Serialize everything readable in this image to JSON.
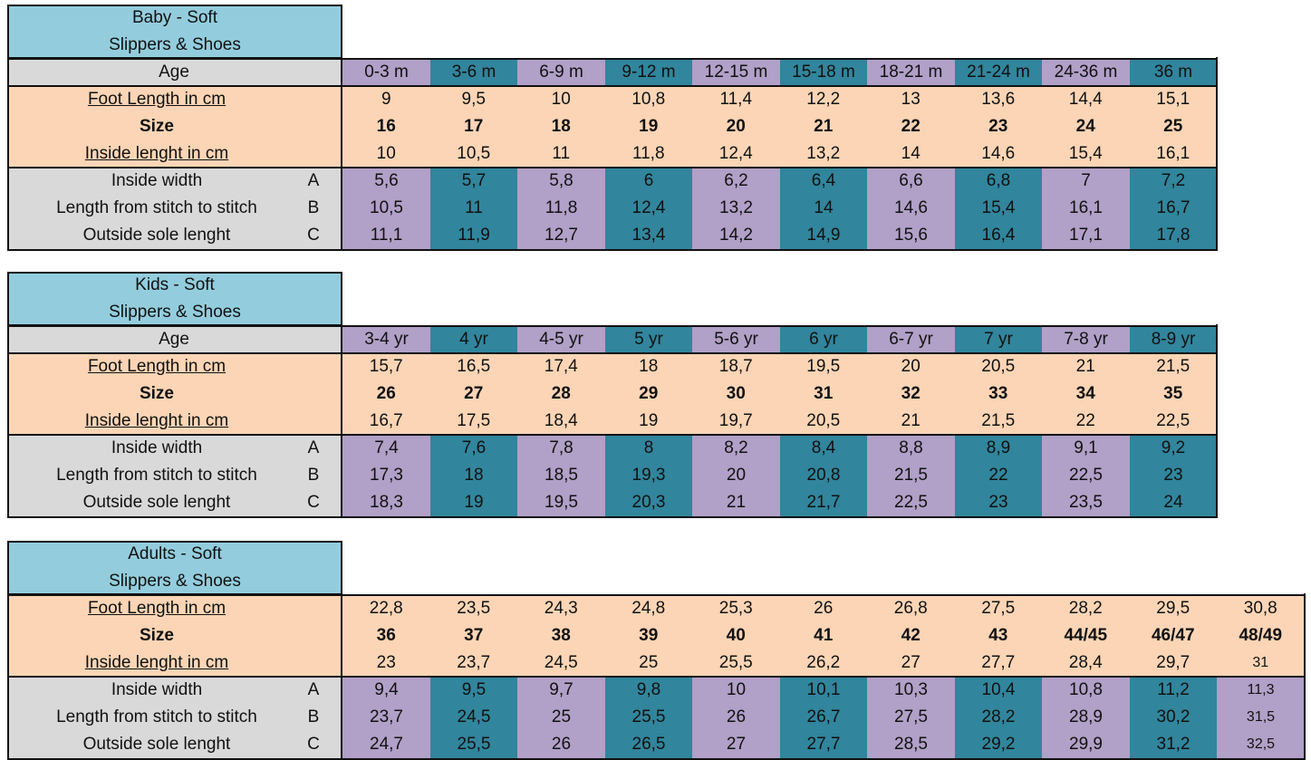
{
  "tables": [
    {
      "title_line1": "Baby - Soft",
      "title_line2": "Slippers & Shoes",
      "age_label": "Age",
      "ages": [
        "0-3 m",
        "3-6 m",
        "6-9 m",
        "9-12 m",
        "12-15 m",
        "15-18 m",
        "18-21 m",
        "21-24 m",
        "24-36 m",
        "36 m"
      ],
      "foot_length_label": "Foot Length in cm",
      "foot_length": [
        "9",
        "9,5",
        "10",
        "10,8",
        "11,4",
        "12,2",
        "13",
        "13,6",
        "14,4",
        "15,1"
      ],
      "size_label": "Size",
      "size": [
        "16",
        "17",
        "18",
        "19",
        "20",
        "21",
        "22",
        "23",
        "24",
        "25"
      ],
      "inside_length_label": "Inside lenght in cm",
      "inside_length": [
        "10",
        "10,5",
        "11",
        "11,8",
        "12,4",
        "13,2",
        "14",
        "14,6",
        "15,4",
        "16,1"
      ],
      "inside_width_label": "Inside width",
      "inside_width_letter": "A",
      "inside_width": [
        "5,6",
        "5,7",
        "5,8",
        "6",
        "6,2",
        "6,4",
        "6,6",
        "6,8",
        "7",
        "7,2"
      ],
      "stitch_label": "Length from stitch to stitch",
      "stitch_letter": "B",
      "stitch": [
        "10,5",
        "11",
        "11,8",
        "12,4",
        "13,2",
        "14",
        "14,6",
        "15,4",
        "16,1",
        "16,7"
      ],
      "outside_label": "Outside sole lenght",
      "outside_letter": "C",
      "outside": [
        "11,1",
        "11,9",
        "12,7",
        "13,4",
        "14,2",
        "14,9",
        "15,6",
        "16,4",
        "17,1",
        "17,8"
      ]
    },
    {
      "title_line1": "Kids - Soft",
      "title_line2": "Slippers & Shoes",
      "age_label": "Age",
      "ages": [
        "3-4 yr",
        "4 yr",
        "4-5 yr",
        "5 yr",
        "5-6 yr",
        "6 yr",
        "6-7 yr",
        "7 yr",
        "7-8 yr",
        "8-9 yr"
      ],
      "foot_length_label": "Foot Length in cm",
      "foot_length": [
        "15,7",
        "16,5",
        "17,4",
        "18",
        "18,7",
        "19,5",
        "20",
        "20,5",
        "21",
        "21,5"
      ],
      "size_label": "Size",
      "size": [
        "26",
        "27",
        "28",
        "29",
        "30",
        "31",
        "32",
        "33",
        "34",
        "35"
      ],
      "inside_length_label": "Inside lenght in cm",
      "inside_length": [
        "16,7",
        "17,5",
        "18,4",
        "19",
        "19,7",
        "20,5",
        "21",
        "21,5",
        "22",
        "22,5"
      ],
      "inside_width_label": "Inside width",
      "inside_width_letter": "A",
      "inside_width": [
        "7,4",
        "7,6",
        "7,8",
        "8",
        "8,2",
        "8,4",
        "8,8",
        "8,9",
        "9,1",
        "9,2"
      ],
      "stitch_label": "Length from stitch to stitch",
      "stitch_letter": "B",
      "stitch": [
        "17,3",
        "18",
        "18,5",
        "19,3",
        "20",
        "20,8",
        "21,5",
        "22",
        "22,5",
        "23"
      ],
      "outside_label": "Outside sole lenght",
      "outside_letter": "C",
      "outside": [
        "18,3",
        "19",
        "19,5",
        "20,3",
        "21",
        "21,7",
        "22,5",
        "23",
        "23,5",
        "24"
      ]
    },
    {
      "title_line1": "Adults - Soft",
      "title_line2": "Slippers & Shoes",
      "foot_length_label": "Foot Length in cm",
      "foot_length": [
        "22,8",
        "23,5",
        "24,3",
        "24,8",
        "25,3",
        "26",
        "26,8",
        "27,5",
        "28,2",
        "29,5",
        "30,8"
      ],
      "size_label": "Size",
      "size": [
        "36",
        "37",
        "38",
        "39",
        "40",
        "41",
        "42",
        "43",
        "44/45",
        "46/47",
        "48/49"
      ],
      "inside_length_label": "Inside lenght in cm",
      "inside_length": [
        "23",
        "23,7",
        "24,5",
        "25",
        "25,5",
        "26,2",
        "27",
        "27,7",
        "28,4",
        "29,7",
        "31"
      ],
      "inside_width_label": "Inside width",
      "inside_width_letter": "A",
      "inside_width": [
        "9,4",
        "9,5",
        "9,7",
        "9,8",
        "10",
        "10,1",
        "10,3",
        "10,4",
        "10,8",
        "11,2",
        "11,3"
      ],
      "stitch_label": "Length from stitch to stitch",
      "stitch_letter": "B",
      "stitch": [
        "23,7",
        "24,5",
        "25",
        "25,5",
        "26",
        "26,7",
        "27,5",
        "28,2",
        "28,9",
        "30,2",
        "31,5"
      ],
      "outside_label": "Outside sole lenght",
      "outside_letter": "C",
      "outside": [
        "24,7",
        "25,5",
        "26",
        "26,5",
        "27",
        "27,7",
        "28,5",
        "29,2",
        "29,9",
        "31,2",
        "32,5"
      ]
    }
  ],
  "colors": {
    "title_bg": "#93cddd",
    "label_grey": "#d9d9d9",
    "peach": "#fbd5b5",
    "purple": "#b1a0c7",
    "teal": "#31859c"
  }
}
